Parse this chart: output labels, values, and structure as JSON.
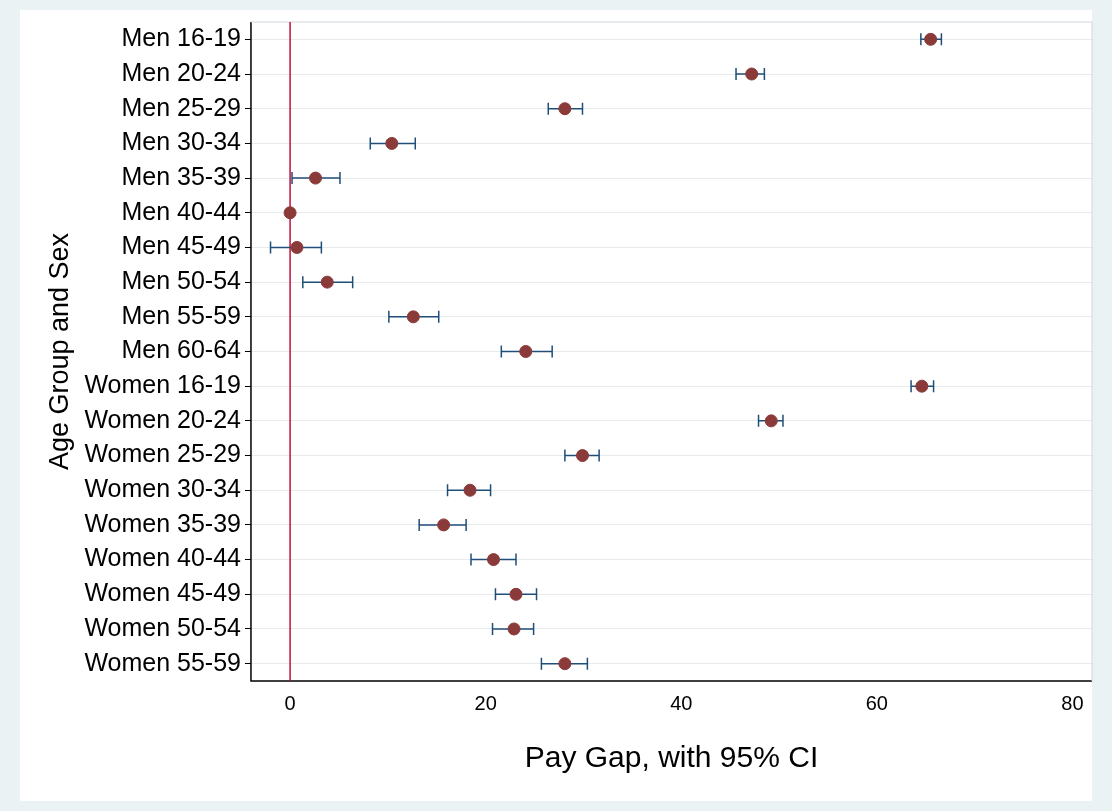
{
  "chart_data": {
    "type": "scatter",
    "orientation": "horizontal",
    "xlabel": "Pay Gap, with 95% CI",
    "ylabel": "Age Group and Sex",
    "categories": [
      "Men 16-19",
      "Men 20-24",
      "Men 25-29",
      "Men 30-34",
      "Men 35-39",
      "Men 40-44",
      "Men 45-49",
      "Men 50-54",
      "Men 55-59",
      "Men 60-64",
      "Women 16-19",
      "Women 20-24",
      "Women 25-29",
      "Women 30-34",
      "Women 35-39",
      "Women 40-44",
      "Women 45-49",
      "Women 50-54",
      "Women 55-59"
    ],
    "values": [
      65.5,
      47.2,
      28.1,
      10.4,
      2.6,
      0,
      0.7,
      3.8,
      12.6,
      24.1,
      64.6,
      49.2,
      29.9,
      18.4,
      15.7,
      20.8,
      23.1,
      22.9,
      28.1
    ],
    "errors": [
      [
        64.5,
        66.6
      ],
      [
        45.6,
        48.5
      ],
      [
        26.4,
        29.9
      ],
      [
        8.2,
        12.8
      ],
      [
        0.2,
        5.1
      ],
      null,
      [
        -2.0,
        3.2
      ],
      [
        1.3,
        6.4
      ],
      [
        10.1,
        15.2
      ],
      [
        21.6,
        26.8
      ],
      [
        63.5,
        65.8
      ],
      [
        47.9,
        50.4
      ],
      [
        28.1,
        31.6
      ],
      [
        16.1,
        20.5
      ],
      [
        13.2,
        18.0
      ],
      [
        18.5,
        23.1
      ],
      [
        21.0,
        25.2
      ],
      [
        20.7,
        24.9
      ],
      [
        25.7,
        30.4
      ]
    ],
    "color": "#8b3a3a",
    "xlim": [
      -4,
      82
    ],
    "xticks": [
      0,
      20,
      40,
      60,
      80
    ],
    "ref_lines": [
      {
        "axis": "x",
        "value": 0,
        "color": "#c0103a"
      }
    ],
    "grid": "y",
    "legend": false,
    "marker": "circle"
  }
}
